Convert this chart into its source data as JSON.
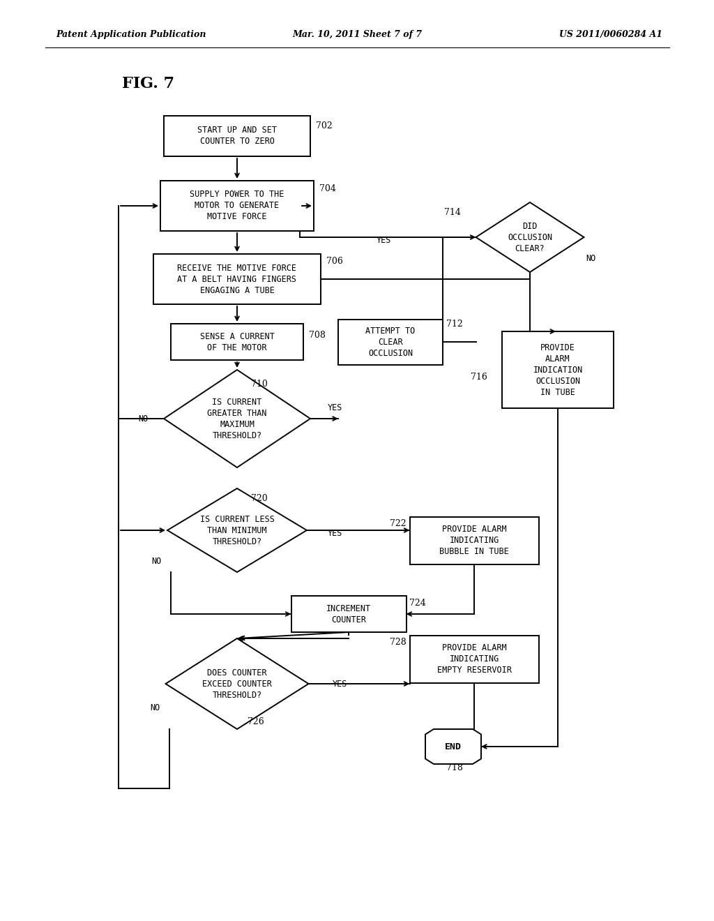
{
  "title_header": "Patent Application Publication",
  "date_header": "Mar. 10, 2011 Sheet 7 of 7",
  "patent_header": "US 2011/0060284 A1",
  "fig_label": "FIG. 7",
  "bg_color": "#ffffff",
  "line_color": "#000000",
  "text_color": "#000000",
  "nodes": {
    "702": {
      "label": "START UP AND SET\nCOUNTER TO ZERO"
    },
    "704": {
      "label": "SUPPLY POWER TO THE\nMOTOR TO GENERATE\nMOTIVE FORCE"
    },
    "706": {
      "label": "RECEIVE THE MOTIVE FORCE\nAT A BELT HAVING FINGERS\nENGAGING A TUBE"
    },
    "708": {
      "label": "SENSE A CURRENT\nOF THE MOTOR"
    },
    "710": {
      "label": "IS CURRENT\nGREATER THAN\nMAXIMUM\nTHRESHOLD?"
    },
    "712": {
      "label": "ATTEMPT TO\nCLEAR\nOCCLUSION"
    },
    "714": {
      "label": "DID\nOCCLUSION\nCLEAR?"
    },
    "716": {
      "label": "PROVIDE\nALARM\nINDICATION\nOCCLUSION\nIN TUBE"
    },
    "720": {
      "label": "IS CURRENT LESS\nTHAN MINIMUM\nTHRESHOLD?"
    },
    "722": {
      "label": "PROVIDE ALARM\nINDICATING\nBUBBLE IN TUBE"
    },
    "724": {
      "label": "INCREMENT\nCOUNTER"
    },
    "726": {
      "label": "DOES COUNTER\nEXCEED COUNTER\nTHRESHOLD?"
    },
    "728": {
      "label": "PROVIDE ALARM\nINDICATING\nEMPTY RESERVOIR"
    },
    "718": {
      "label": "END"
    }
  }
}
